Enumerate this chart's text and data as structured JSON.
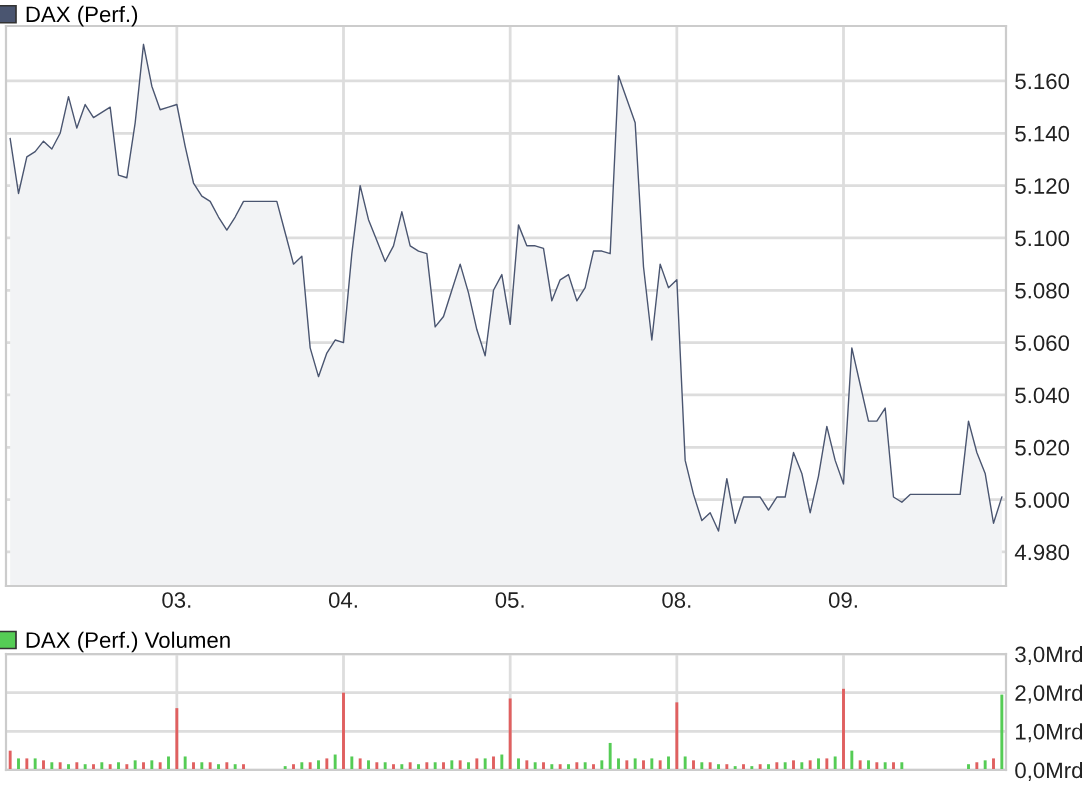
{
  "chart_data": [
    {
      "type": "area",
      "categories": [
        null,
        null,
        null,
        null,
        null,
        null,
        null,
        null,
        null,
        null,
        null,
        null,
        null,
        null,
        null,
        null,
        null,
        null,
        null,
        null,
        "03.",
        null,
        null,
        null,
        null,
        null,
        null,
        null,
        null,
        null,
        null,
        null,
        null,
        null,
        null,
        null,
        null,
        null,
        null,
        null,
        "04.",
        null,
        null,
        null,
        null,
        null,
        null,
        null,
        null,
        null,
        null,
        null,
        null,
        null,
        null,
        null,
        null,
        null,
        null,
        null,
        "05.",
        null,
        null,
        null,
        null,
        null,
        null,
        null,
        null,
        null,
        null,
        null,
        null,
        null,
        null,
        null,
        null,
        null,
        null,
        null,
        "08.",
        null,
        null,
        null,
        null,
        null,
        null,
        null,
        null,
        null,
        null,
        null,
        null,
        null,
        null,
        null,
        null,
        null,
        null,
        null,
        "09.",
        null,
        null,
        null,
        null,
        null,
        null,
        null,
        null,
        null,
        null,
        null,
        null,
        null,
        null,
        null,
        null,
        null,
        null,
        null
      ],
      "series": [
        {
          "name": "DAX (Perf.)",
          "color": "#4a5570",
          "values": [
            5138,
            5117,
            5131,
            5133,
            5137,
            5134,
            5140,
            5154,
            5142,
            5151,
            5146,
            5148,
            5150,
            5124,
            5123,
            5144,
            5174,
            5158,
            5149,
            5150,
            5151,
            5135,
            5121,
            5116,
            5114,
            5108,
            5103,
            5108,
            5114,
            5114,
            5114,
            5114,
            5114,
            5102,
            5090,
            5093,
            5058,
            5047,
            5056,
            5061,
            5060,
            5094,
            5120,
            5107,
            5099,
            5091,
            5097,
            5110,
            5097,
            5095,
            5094,
            5066,
            5070,
            5080,
            5090,
            5079,
            5065,
            5055,
            5080,
            5086,
            5067,
            5105,
            5097,
            5097,
            5096,
            5076,
            5084,
            5086,
            5076,
            5081,
            5095,
            5095,
            5094,
            5162,
            5153,
            5144,
            5089,
            5061,
            5090,
            5081,
            5084,
            5015,
            5002,
            4992,
            4995,
            4988,
            5008,
            4991,
            5001,
            5001,
            5001,
            4996,
            5001,
            5001,
            5018,
            5010,
            4995,
            5009,
            5028,
            5015,
            5006,
            5058,
            5044,
            5030,
            5030,
            5035,
            5001,
            4999,
            5002,
            5002,
            5002,
            5002,
            5002,
            5002,
            5002,
            5030,
            5018,
            5010,
            4991,
            5001
          ]
        }
      ],
      "ylim": [
        4967,
        5181
      ],
      "yticks": [
        {
          "value": 4980,
          "label": "4.980"
        },
        {
          "value": 5000,
          "label": "5.000"
        },
        {
          "value": 5020,
          "label": "5.020"
        },
        {
          "value": 5040,
          "label": "5.040"
        },
        {
          "value": 5060,
          "label": "5.060"
        },
        {
          "value": 5080,
          "label": "5.080"
        },
        {
          "value": 5100,
          "label": "5.100"
        },
        {
          "value": 5120,
          "label": "5.120"
        },
        {
          "value": 5140,
          "label": "5.140"
        },
        {
          "value": 5160,
          "label": "5.160"
        }
      ],
      "grid": true,
      "legend": "top left"
    },
    {
      "type": "bar",
      "categories": [
        null,
        null,
        null,
        null,
        null,
        null,
        null,
        null,
        null,
        null,
        null,
        null,
        null,
        null,
        null,
        null,
        null,
        null,
        null,
        null,
        null,
        null,
        null,
        null,
        null,
        null,
        null,
        null,
        null,
        null,
        null,
        null,
        null,
        null,
        null,
        null,
        null,
        null,
        null,
        null,
        null,
        null,
        null,
        null,
        null,
        null,
        null,
        null,
        null,
        null,
        null,
        null,
        null,
        null,
        null,
        null,
        null,
        null,
        null,
        null,
        null,
        null,
        null,
        null,
        null,
        null,
        null,
        null,
        null,
        null,
        null,
        null,
        null,
        null,
        null,
        null,
        null,
        null,
        null,
        null,
        null,
        null,
        null,
        null,
        null,
        null,
        null,
        null,
        null,
        null,
        null,
        null,
        null,
        null,
        null,
        null,
        null,
        null,
        null,
        null,
        null,
        null,
        null,
        null,
        null,
        null,
        null,
        null,
        null,
        null,
        null,
        null,
        null,
        null,
        null,
        null,
        null,
        null,
        null,
        null
      ],
      "series": [
        {
          "name": "DAX (Perf.) Volumen",
          "color": "#55cc55",
          "values": [
            0.5,
            0.3,
            0.3,
            0.3,
            0.25,
            0.2,
            0.2,
            0.15,
            0.2,
            0.15,
            0.15,
            0.2,
            0.15,
            0.2,
            0.15,
            0.25,
            0.2,
            0.25,
            0.2,
            0.35,
            1.6,
            0.35,
            0.2,
            0.2,
            0.2,
            0.15,
            0.2,
            0.15,
            0.15,
            null,
            null,
            null,
            null,
            0.1,
            0.15,
            0.2,
            0.2,
            0.25,
            0.3,
            0.4,
            2.0,
            0.35,
            0.3,
            0.25,
            0.2,
            0.2,
            0.15,
            0.15,
            0.2,
            0.15,
            0.2,
            0.2,
            0.2,
            0.25,
            0.25,
            0.2,
            0.3,
            0.3,
            0.35,
            0.4,
            1.85,
            0.3,
            0.25,
            0.2,
            0.2,
            0.15,
            0.15,
            0.15,
            0.2,
            0.2,
            0.15,
            0.25,
            0.7,
            0.3,
            0.25,
            0.3,
            0.25,
            0.3,
            0.25,
            0.35,
            1.75,
            0.35,
            0.25,
            0.2,
            0.2,
            0.15,
            0.15,
            0.1,
            0.15,
            0.1,
            0.15,
            0.15,
            0.2,
            0.2,
            0.25,
            0.2,
            0.25,
            0.3,
            0.3,
            0.35,
            2.1,
            0.5,
            0.25,
            0.25,
            0.2,
            0.2,
            0.2,
            0.2,
            null,
            null,
            null,
            null,
            null,
            null,
            null,
            0.15,
            0.2,
            0.25,
            0.3,
            1.95
          ],
          "colors": [
            "#e06060",
            "#55cc55",
            "#e06060",
            "#55cc55",
            "#e06060",
            "#55cc55",
            "#e06060",
            "#55cc55",
            "#e06060",
            "#55cc55",
            "#e06060",
            "#55cc55",
            "#e06060",
            "#55cc55",
            "#e06060",
            "#55cc55",
            "#e06060",
            "#55cc55",
            "#e06060",
            "#55cc55",
            "#e06060",
            "#55cc55",
            "#e06060",
            "#55cc55",
            "#e06060",
            "#55cc55",
            "#e06060",
            "#55cc55",
            "#e06060",
            "#55cc55",
            "#e06060",
            "#55cc55",
            "#e06060",
            "#55cc55",
            "#e06060",
            "#55cc55",
            "#e06060",
            "#55cc55",
            "#e06060",
            "#55cc55",
            "#e06060",
            "#55cc55",
            "#e06060",
            "#55cc55",
            "#e06060",
            "#55cc55",
            "#e06060",
            "#55cc55",
            "#e06060",
            "#55cc55",
            "#e06060",
            "#55cc55",
            "#e06060",
            "#55cc55",
            "#e06060",
            "#55cc55",
            "#e06060",
            "#55cc55",
            "#e06060",
            "#55cc55",
            "#e06060",
            "#55cc55",
            "#e06060",
            "#55cc55",
            "#e06060",
            "#55cc55",
            "#e06060",
            "#55cc55",
            "#e06060",
            "#55cc55",
            "#e06060",
            "#55cc55",
            "#55cc55",
            "#55cc55",
            "#e06060",
            "#55cc55",
            "#e06060",
            "#55cc55",
            "#e06060",
            "#55cc55",
            "#e06060",
            "#55cc55",
            "#e06060",
            "#55cc55",
            "#e06060",
            "#55cc55",
            "#e06060",
            "#55cc55",
            "#e06060",
            "#55cc55",
            "#e06060",
            "#55cc55",
            "#e06060",
            "#55cc55",
            "#e06060",
            "#55cc55",
            "#e06060",
            "#55cc55",
            "#e06060",
            "#55cc55",
            "#e06060",
            "#55cc55",
            "#e06060",
            "#55cc55",
            "#e06060",
            "#55cc55",
            "#e06060",
            "#55cc55",
            "#e06060",
            "#55cc55",
            "#e06060",
            "#55cc55",
            "#e06060",
            "#55cc55",
            "#e06060",
            "#55cc55",
            "#e06060",
            "#55cc55",
            "#e06060",
            "#55cc55"
          ]
        }
      ],
      "ylim": [
        0,
        3
      ],
      "yticks": [
        {
          "value": 0,
          "label": "0,0Mrd"
        },
        {
          "value": 1,
          "label": "1,0Mrd"
        },
        {
          "value": 2,
          "label": "2,0Mrd"
        },
        {
          "value": 3,
          "label": "3,0Mrd"
        }
      ],
      "grid": true,
      "legend": "top left",
      "tick_labels": "y"
    }
  ]
}
